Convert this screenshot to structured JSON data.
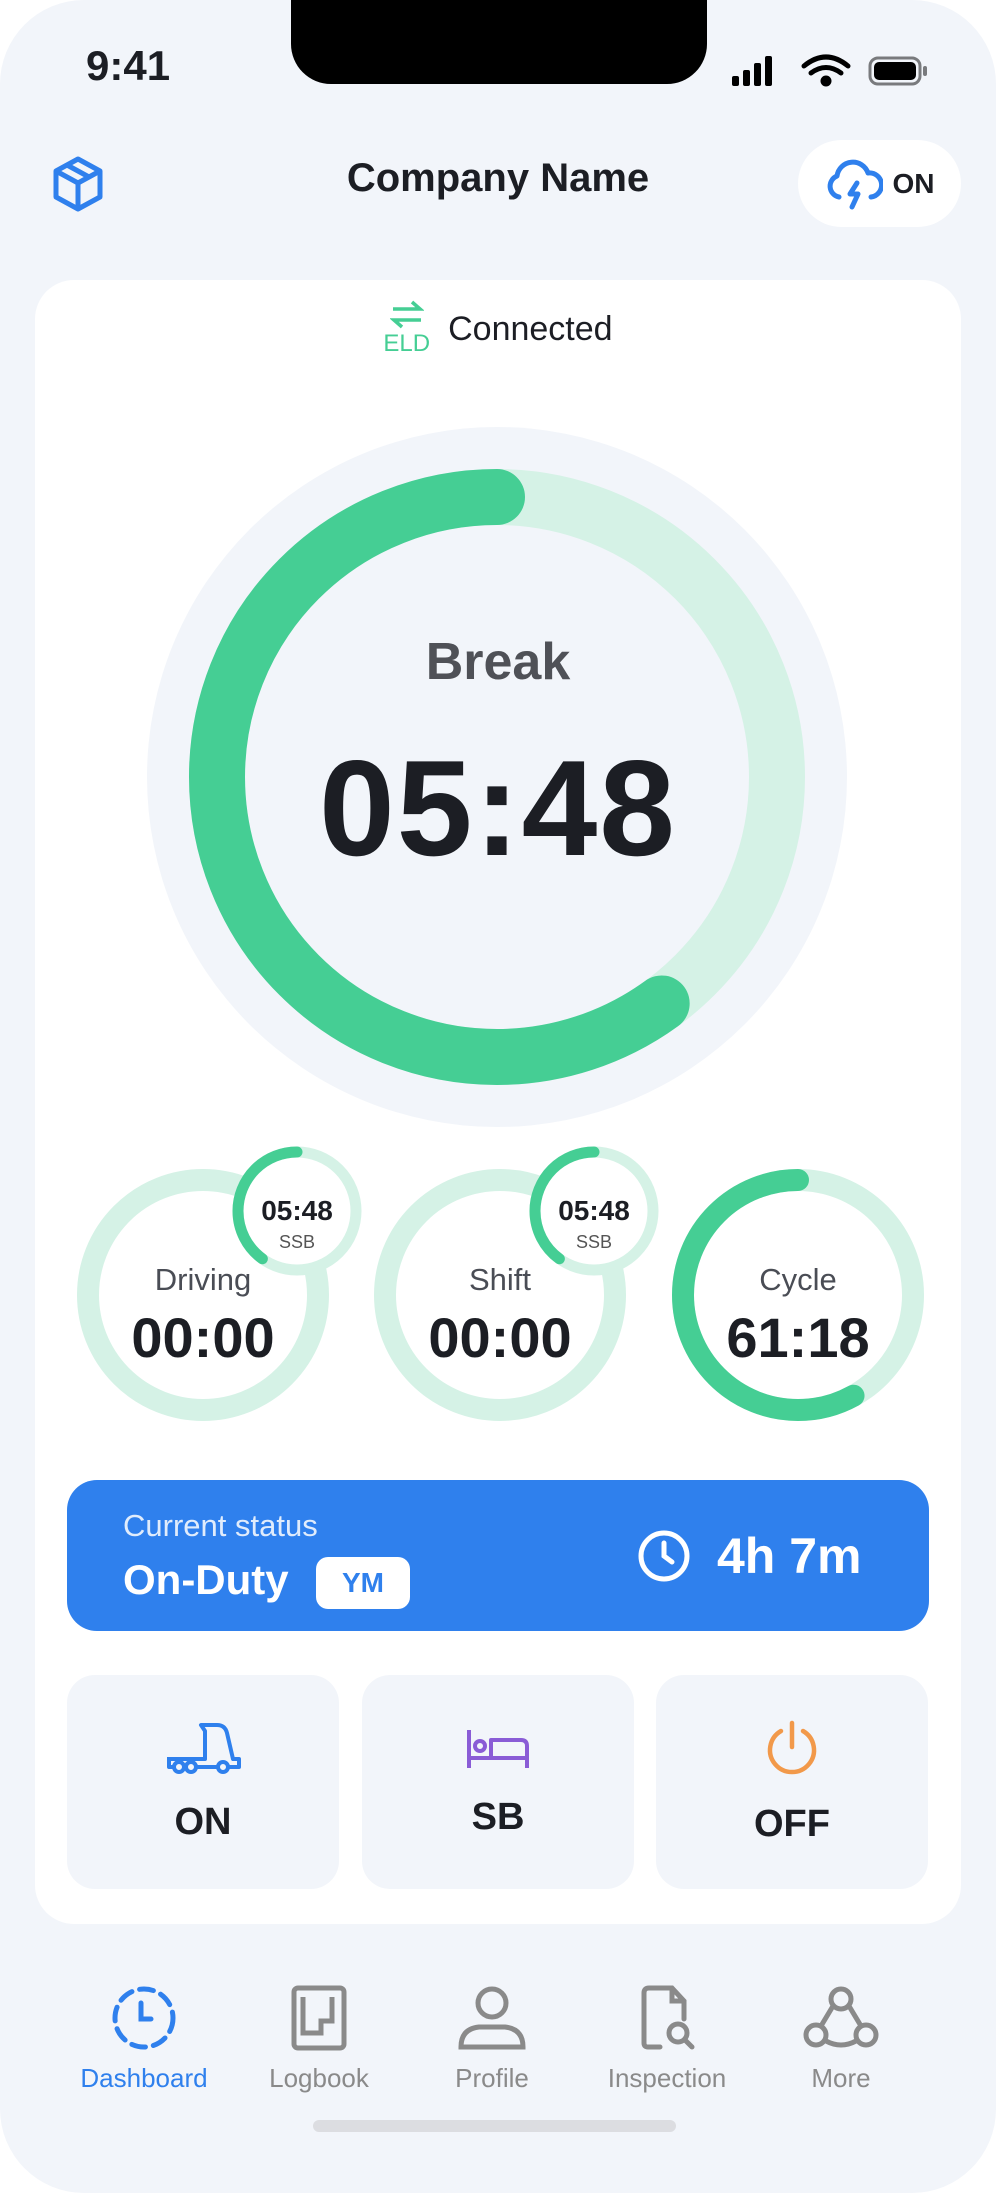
{
  "status_bar": {
    "time": "9:41"
  },
  "header": {
    "title": "Company Name",
    "sync_label": "ON",
    "sync_icon": "cloud-bolt-icon",
    "left_icon": "box-icon"
  },
  "eld": {
    "badge": "ELD",
    "status": "Connected"
  },
  "main_timer": {
    "label": "Break",
    "value": "05:48",
    "progress": 0.6
  },
  "timers": [
    {
      "label": "Driving",
      "value": "00:00",
      "progress": 0,
      "ssb": {
        "value": "05:48",
        "label": "SSB",
        "progress": 0.4
      }
    },
    {
      "label": "Shift",
      "value": "00:00",
      "progress": 0,
      "ssb": {
        "value": "05:48",
        "label": "SSB",
        "progress": 0.4
      }
    },
    {
      "label": "Cycle",
      "value": "61:18",
      "progress": 0.58
    }
  ],
  "current_status": {
    "caption": "Current status",
    "value": "On-Duty",
    "badge": "YM",
    "duration": "4h 7m"
  },
  "duty_buttons": [
    {
      "label": "ON",
      "icon": "truck-icon",
      "color": "#2f80ed"
    },
    {
      "label": "SB",
      "icon": "bed-icon",
      "color": "#8a5cd6"
    },
    {
      "label": "OFF",
      "icon": "power-icon",
      "color": "#f2994a"
    }
  ],
  "nav": [
    {
      "label": "Dashboard",
      "active": true
    },
    {
      "label": "Logbook"
    },
    {
      "label": "Profile"
    },
    {
      "label": "Inspection"
    },
    {
      "label": "More"
    }
  ],
  "colors": {
    "accent": "#2f80ed",
    "green": "#45ce94",
    "green_track": "#d5f2e6",
    "background": "#f2f5fa"
  }
}
